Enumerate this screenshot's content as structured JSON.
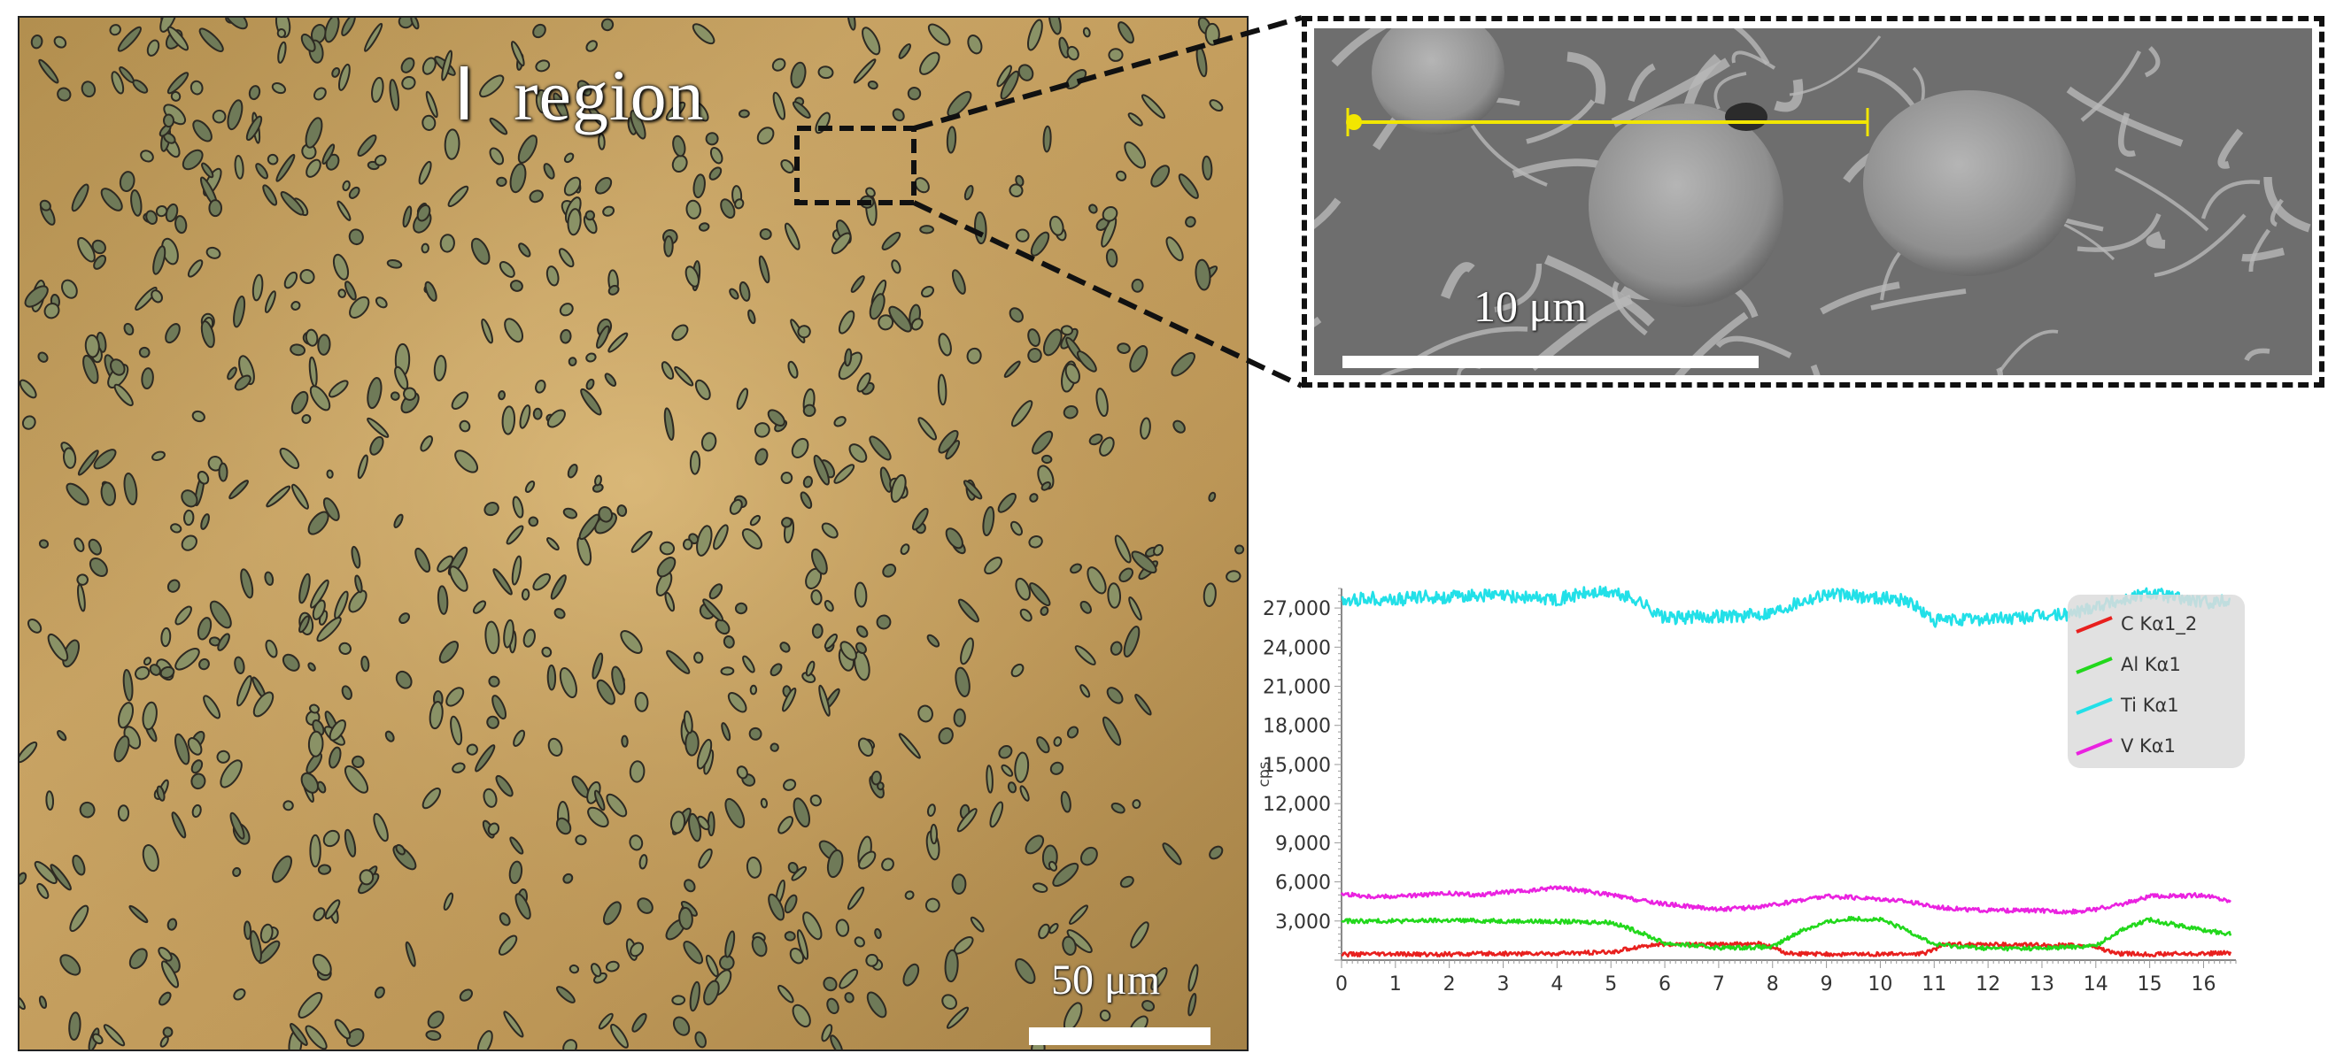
{
  "micrograph": {
    "region_label": "Ⅰ  region",
    "scale_bar_label": "50 μm"
  },
  "sem_inset": {
    "scale_bar_label": "10 μm",
    "line_scan_color": "#f2e600"
  },
  "chart_data": {
    "type": "line",
    "title": "",
    "xlabel": "",
    "ylabel": "cps",
    "xlim": [
      0,
      16.6
    ],
    "ylim": [
      0,
      28500
    ],
    "x_ticks": [
      0,
      1,
      2,
      3,
      4,
      5,
      6,
      7,
      8,
      9,
      10,
      11,
      12,
      13,
      14,
      15,
      16
    ],
    "y_ticks": [
      3000,
      6000,
      9000,
      12000,
      15000,
      18000,
      21000,
      24000,
      27000
    ],
    "y_tick_labels": [
      "3,000",
      "6,000",
      "9,000",
      "12,000",
      "15,000",
      "18,000",
      "21,000",
      "24,000",
      "27,000"
    ],
    "grid": false,
    "legend_position": "top-right",
    "series": [
      {
        "name": "C Kα1_2",
        "color": "#e8201e",
        "x": [
          0,
          1,
          2,
          3,
          4,
          5,
          5.6,
          6,
          7,
          7.8,
          8.3,
          9,
          10,
          10.8,
          11.2,
          12,
          13,
          13.9,
          14.4,
          15,
          16,
          16.5
        ],
        "y": [
          450,
          450,
          450,
          500,
          500,
          600,
          1100,
          1200,
          1200,
          1250,
          500,
          450,
          450,
          500,
          1200,
          1200,
          1150,
          1100,
          500,
          450,
          500,
          550
        ]
      },
      {
        "name": "Al Kα1",
        "color": "#22d81c",
        "x": [
          0,
          1,
          2,
          3,
          4,
          5,
          5.5,
          6,
          7,
          8,
          8.5,
          9,
          9.5,
          10,
          10.5,
          11,
          12,
          13,
          14,
          14.5,
          15,
          15.5,
          16,
          16.5
        ],
        "y": [
          3000,
          3000,
          3050,
          3000,
          2950,
          2900,
          2200,
          1300,
          950,
          1000,
          2200,
          2900,
          3200,
          3100,
          2300,
          1200,
          900,
          900,
          1100,
          2400,
          3100,
          2700,
          2300,
          2000
        ]
      },
      {
        "name": "Ti Kα1",
        "color": "#22e0e8",
        "x": [
          0,
          0.5,
          1,
          1.5,
          2,
          2.5,
          3,
          3.5,
          4,
          4.5,
          5,
          5.5,
          6,
          6.5,
          7,
          7.5,
          8,
          8.5,
          9,
          9.5,
          10,
          10.5,
          11,
          11.5,
          12,
          12.5,
          13,
          13.5,
          14,
          14.5,
          15,
          15.5,
          16,
          16.5
        ],
        "y": [
          27500,
          27800,
          27600,
          27900,
          27800,
          28000,
          27900,
          27800,
          27700,
          28100,
          28200,
          27600,
          26200,
          26300,
          26400,
          26400,
          26700,
          27500,
          28100,
          27900,
          27800,
          27600,
          26000,
          26100,
          26200,
          26200,
          26400,
          26500,
          27200,
          27600,
          28200,
          27800,
          27400,
          27600
        ]
      },
      {
        "name": "V Kα1",
        "color": "#ea22e0",
        "x": [
          0,
          0.5,
          1,
          1.5,
          2,
          2.5,
          3,
          3.5,
          4,
          4.5,
          5,
          5.5,
          6,
          6.5,
          7,
          7.5,
          8,
          8.5,
          9,
          9.5,
          10,
          10.5,
          11,
          11.5,
          12,
          12.5,
          13,
          13.5,
          14,
          14.5,
          15,
          15.5,
          16,
          16.5
        ],
        "y": [
          5100,
          4900,
          4900,
          5000,
          5100,
          5000,
          5200,
          5300,
          5600,
          5300,
          5000,
          4600,
          4300,
          4100,
          3900,
          4000,
          4200,
          4600,
          4900,
          4800,
          4700,
          4500,
          4100,
          3900,
          3800,
          3800,
          3800,
          3700,
          3900,
          4300,
          4900,
          4900,
          5000,
          4500
        ]
      }
    ]
  }
}
